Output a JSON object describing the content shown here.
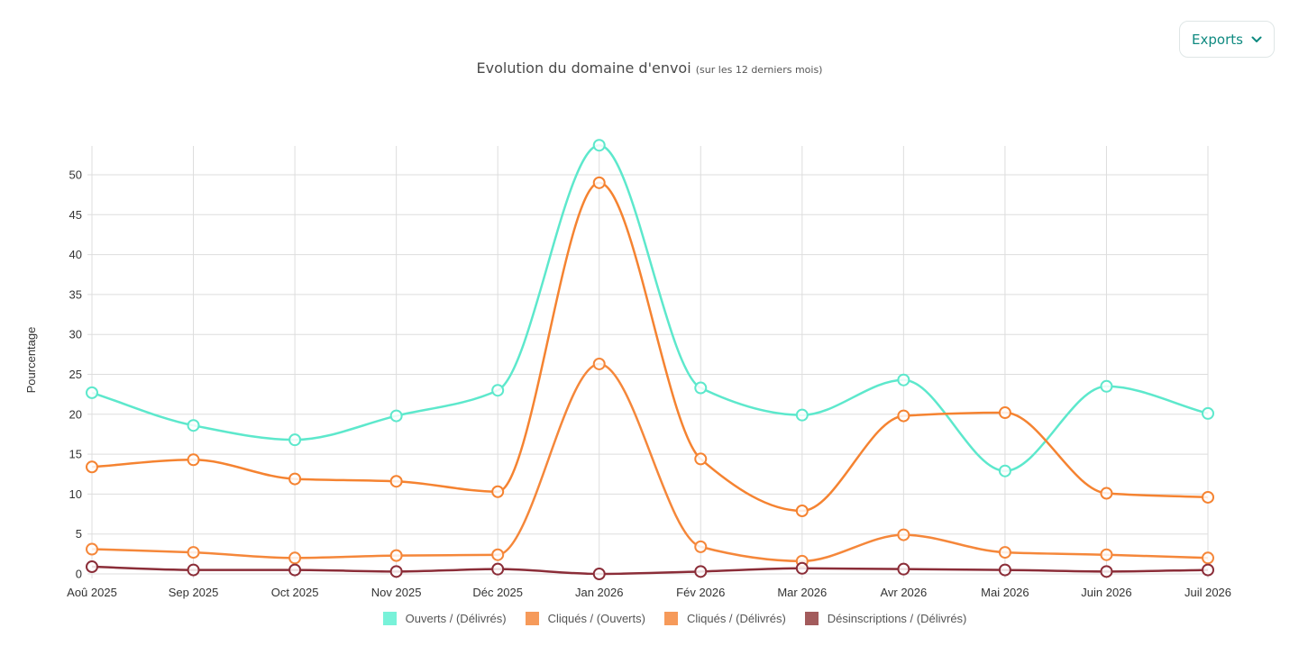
{
  "toolbar": {
    "exports_label": "Exports",
    "exports_icon": "chevron-down-icon",
    "accent": "#0f8a80"
  },
  "chart_data": {
    "type": "line",
    "title": "Evolution du domaine d'envoi",
    "subtitle": "(sur les 12 derniers mois)",
    "xlabel": "",
    "ylabel": "Pourcentage",
    "categories": [
      "Aoû 2025",
      "Sep 2025",
      "Oct 2025",
      "Nov 2025",
      "Déc 2025",
      "Jan 2026",
      "Fév 2026",
      "Mar 2026",
      "Avr 2026",
      "Mai 2026",
      "Juin 2026",
      "Juil 2026"
    ],
    "ylim": [
      0,
      53.7
    ],
    "yticks": [
      0,
      5,
      10,
      15,
      20,
      25,
      30,
      35,
      40,
      45,
      50
    ],
    "grid": true,
    "legend_position": "bottom",
    "series": [
      {
        "name": "Ouverts / (Délivrés)",
        "color": "#5de8cc",
        "values": [
          22.7,
          18.6,
          16.8,
          19.8,
          23.0,
          53.7,
          23.3,
          19.9,
          24.3,
          12.9,
          23.5,
          20.1
        ]
      },
      {
        "name": "Cliqués / (Ouverts)",
        "color": "#f58331",
        "values": [
          13.4,
          14.3,
          11.9,
          11.6,
          10.3,
          49.0,
          14.4,
          7.9,
          19.8,
          20.2,
          10.1,
          9.6
        ]
      },
      {
        "name": "Cliqués / (Délivrés)",
        "color": "#f5873a",
        "values": [
          3.1,
          2.7,
          2.0,
          2.3,
          2.4,
          26.3,
          3.4,
          1.6,
          4.9,
          2.7,
          2.4,
          2.0
        ]
      },
      {
        "name": "Désinscriptions / (Délivrés)",
        "color": "#8b2d38",
        "values": [
          0.9,
          0.5,
          0.5,
          0.3,
          0.6,
          0.0,
          0.3,
          0.7,
          0.6,
          0.5,
          0.3,
          0.5
        ]
      }
    ],
    "legend_swatches": [
      "#78f2d9",
      "#f69a5a",
      "#f69a5a",
      "#a35b5c"
    ]
  }
}
